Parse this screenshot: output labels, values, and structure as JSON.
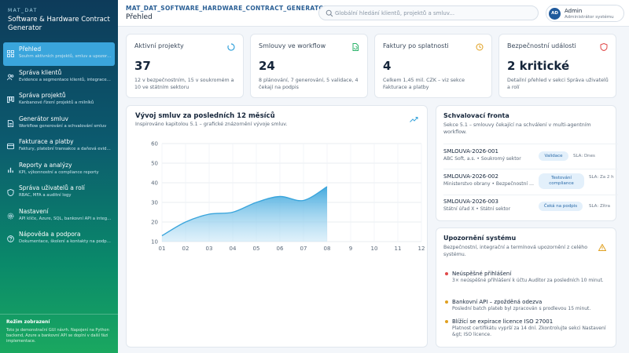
{
  "sidebar": {
    "brand_small": "MAT_DAT",
    "brand_title": "Software & Hardware Contract Generator",
    "items": [
      {
        "label": "Přehled",
        "sub": "Souhrn aktivních projektů, smluv a upozornění"
      },
      {
        "label": "Správa klientů",
        "sub": "Evidence a segmentace klientů, integrace CRM"
      },
      {
        "label": "Správa projektů",
        "sub": "Kanbanové řízení projektů a milníků"
      },
      {
        "label": "Generátor smluv",
        "sub": "Workflow generování a schvalování smluv"
      },
      {
        "label": "Fakturace a platby",
        "sub": "Faktury, platební transakce a daňová evidence"
      },
      {
        "label": "Reporty a analýzy",
        "sub": "KPI, výkonnostní a compliance reporty"
      },
      {
        "label": "Správa uživatelů a rolí",
        "sub": "RBAC, MFA a auditní logy"
      },
      {
        "label": "Nastavení",
        "sub": "API klíče, Azure, SQL, bankovní API a integrace"
      },
      {
        "label": "Nápověda a podpora",
        "sub": "Dokumentace, školení a kontakty na podporu"
      }
    ],
    "mode_title": "Režim zobrazení",
    "mode_text": "Toto je demonstrační GUI návrh. Napojení na Python backend, Azure a bankovní API se doplní v další fázi implementace."
  },
  "header": {
    "app_code": "MAT_DAT_SOFTWARE_HARDWARE_CONTRACT_GENERATOR",
    "page_title": "Přehled",
    "search_placeholder": "Globální hledání klientů, projektů a smluv...",
    "user": {
      "initials": "AD",
      "name": "Admin",
      "role": "Administrátor systému"
    }
  },
  "stats": [
    {
      "title": "Aktivní projekty",
      "value": "37",
      "desc": "12 v bezpečnostním, 15 v soukromém a 10 ve státním sektoru",
      "icon": "spinner-icon",
      "color": "#3aa5dc"
    },
    {
      "title": "Smlouvy ve workflow",
      "value": "24",
      "desc": "8 plánování, 7 generování, 5 validace, 4 čekají na podpis",
      "icon": "document-refresh-icon",
      "color": "#2bb36a"
    },
    {
      "title": "Faktury po splatnosti",
      "value": "4",
      "desc": "Celkem 1,45 mil. CZK – viz sekce Fakturace a platby",
      "icon": "clock-icon",
      "color": "#e0a020"
    },
    {
      "title": "Bezpečnostní události",
      "value": "2 kritické",
      "desc": "Detailní přehled v sekci Správa uživatelů a rolí",
      "icon": "shield-icon",
      "color": "#e04848"
    }
  ],
  "chart": {
    "title": "Vývoj smluv za posledních 12 měsíců",
    "subtitle": "Inspirováno kapitolou 5.1 – grafické znázornění vývoje smluv.",
    "trend_icon": "trend-up-icon",
    "accent": "#3aa5dc"
  },
  "chart_data": {
    "type": "area",
    "x": [
      1,
      2,
      3,
      4,
      5,
      6,
      7,
      8
    ],
    "values": [
      13,
      20,
      24,
      25,
      30,
      33,
      31,
      38
    ],
    "xticks": [
      "01",
      "02",
      "03",
      "04",
      "05",
      "06",
      "07",
      "08",
      "9",
      "10",
      "11",
      "12"
    ],
    "yticks": [
      "10",
      "20",
      "30",
      "40",
      "50",
      "60"
    ],
    "ylim": [
      10,
      60
    ],
    "xlim": [
      1,
      12
    ],
    "grid": true,
    "title": "Vývoj smluv za posledních 12 měsíců",
    "subtitle": "Inspirováno kapitolou 5.1 – grafické znázornění vývoje smluv."
  },
  "queue": {
    "title": "Schvalovací fronta",
    "subtitle": "Sekce 5.1 – smlouvy čekající na schválení v multi-agentním workflow.",
    "items": [
      {
        "id": "SMLOUVA-2026-001",
        "org": "ABC Soft, a.s. • Soukromý sektor",
        "status": "Validace",
        "sla": "SLA: Dnes"
      },
      {
        "id": "SMLOUVA-2026-002",
        "org": "Ministerstvo obrany • Bezpečnostní sektor",
        "status": "Testování compliance",
        "sla": "SLA: Za 2 h"
      },
      {
        "id": "SMLOUVA-2026-003",
        "org": "Státní úřad X • Státní sektor",
        "status": "Čeká na podpis",
        "sla": "SLA: Zítra"
      }
    ]
  },
  "alerts": {
    "title": "Upozornění systému",
    "subtitle": "Bezpečnostní, integrační a termínová upozornění z celého systému.",
    "icon": "warning-icon",
    "items": [
      {
        "title": "Neúspěšné přihlášení",
        "text": "3× neúspěšné přihlášení k účtu Auditor za posledních 10 minut.",
        "color": "#e04848"
      },
      {
        "title": "Bankovní API – zpožděná odezva",
        "text": "Poslední batch plateb byl zpracován s prodlevou 15 minut.",
        "color": "#e0a020"
      },
      {
        "title": "Blížící se expirace licence ISO 27001",
        "text": "Platnost certifikátu vyprší za 14 dní. Zkontrolujte sekci Nastavení &gt; ISO licence.",
        "color": "#e0a020"
      }
    ]
  }
}
